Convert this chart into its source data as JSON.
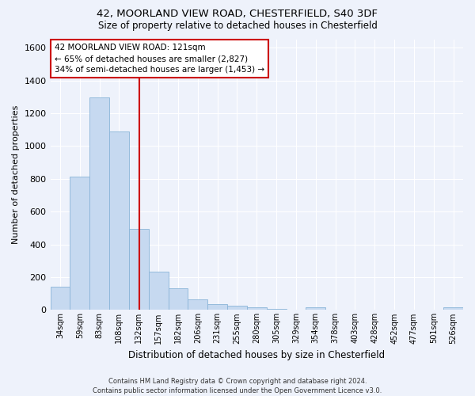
{
  "title_line1": "42, MOORLAND VIEW ROAD, CHESTERFIELD, S40 3DF",
  "title_line2": "Size of property relative to detached houses in Chesterfield",
  "xlabel": "Distribution of detached houses by size in Chesterfield",
  "ylabel": "Number of detached properties",
  "footnote": "Contains HM Land Registry data © Crown copyright and database right 2024.\nContains public sector information licensed under the Open Government Licence v3.0.",
  "bin_labels": [
    "34sqm",
    "59sqm",
    "83sqm",
    "108sqm",
    "132sqm",
    "157sqm",
    "182sqm",
    "206sqm",
    "231sqm",
    "255sqm",
    "280sqm",
    "305sqm",
    "329sqm",
    "354sqm",
    "378sqm",
    "403sqm",
    "428sqm",
    "452sqm",
    "477sqm",
    "501sqm",
    "526sqm"
  ],
  "bar_values": [
    140,
    815,
    1295,
    1090,
    495,
    232,
    130,
    65,
    35,
    25,
    15,
    5,
    0,
    15,
    0,
    0,
    0,
    0,
    0,
    0,
    15
  ],
  "bar_color": "#c6d9f0",
  "bar_edgecolor": "#8ab4d8",
  "vline_color": "#cc0000",
  "annotation_text": "42 MOORLAND VIEW ROAD: 121sqm\n← 65% of detached houses are smaller (2,827)\n34% of semi-detached houses are larger (1,453) →",
  "annotation_box_color": "#cc0000",
  "ylim": [
    0,
    1650
  ],
  "yticks": [
    0,
    200,
    400,
    600,
    800,
    1000,
    1200,
    1400,
    1600
  ],
  "bg_color": "#eef2fb",
  "grid_color": "#ffffff"
}
